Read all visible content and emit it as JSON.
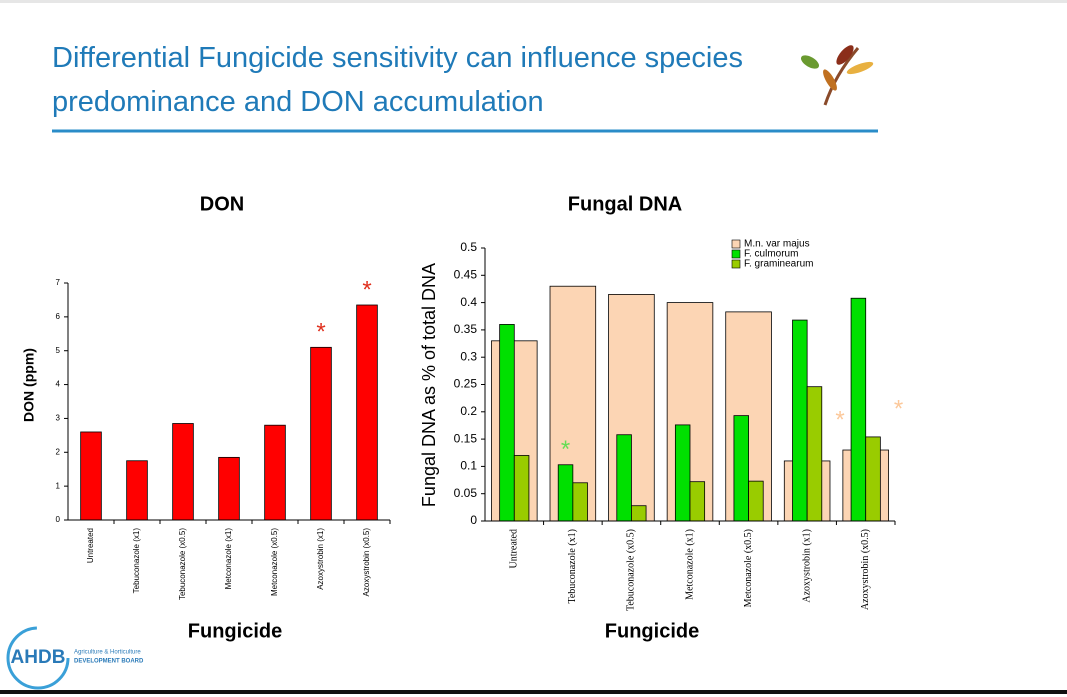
{
  "header": {
    "title": "Differential Fungicide sensitivity can influence species predominance and DON accumulation"
  },
  "logo": {
    "name": "AHDB",
    "line1": "Agriculture & Horticulture",
    "line2": "DEVELOPMENT BOARD"
  },
  "chart_data": [
    {
      "type": "bar",
      "title": "DON",
      "x_label": "Fungicide",
      "y_label": "DON (ppm)",
      "categories": [
        "Untreated",
        "Tebuconazole (x1)",
        "Tebuconazole (x0.5)",
        "Metconazole (x1)",
        "Metconazole (x0.5)",
        "Azoxystrobin (x1)",
        "Azoxystrobin (x0.5)"
      ],
      "values": [
        2.6,
        1.75,
        2.85,
        1.85,
        2.8,
        5.1,
        6.35
      ],
      "color": "#ff0000",
      "ylim": [
        0,
        7
      ],
      "yticks": [
        0,
        1,
        2,
        3,
        4,
        5,
        6,
        7
      ],
      "grid": false,
      "annotations": [
        {
          "text": "*",
          "category": "Azoxystrobin (x1)",
          "color": "#e0301e"
        },
        {
          "text": "*",
          "category": "Azoxystrobin (x0.5)",
          "color": "#e0301e"
        }
      ]
    },
    {
      "type": "bar",
      "title": "Fungal DNA",
      "x_label": "Fungicide",
      "y_label": "Fungal DNA as % of total DNA",
      "categories": [
        "Untreated",
        "Tebuconazole (x1)",
        "Tebuconazole (x0.5)",
        "Metconazole (x1)",
        "Metconazole (x0.5)",
        "Azoxystrobin (x1)",
        "Azoxystrobin (x0.5)"
      ],
      "series": [
        {
          "name": "M.n. var majus",
          "color": "#fcd5b4",
          "values": [
            0.33,
            0.43,
            0.415,
            0.4,
            0.383,
            0.11,
            0.13
          ]
        },
        {
          "name": "F. culmorum",
          "color": "#00e000",
          "values": [
            0.36,
            0.103,
            0.158,
            0.176,
            0.193,
            0.368,
            0.408
          ]
        },
        {
          "name": "F. graminearum",
          "color": "#99cc00",
          "values": [
            0.12,
            0.07,
            0.028,
            0.072,
            0.073,
            0.246,
            0.154
          ]
        }
      ],
      "ylim": [
        0,
        0.5
      ],
      "yticks": [
        0,
        0.05,
        0.1,
        0.15,
        0.2,
        0.25,
        0.3,
        0.35,
        0.4,
        0.45,
        0.5
      ],
      "grid": false,
      "legend": "top-right",
      "annotations": [
        {
          "text": "*",
          "category": "Tebuconazole (x1)",
          "series": "F. culmorum",
          "color": "#66dd55"
        },
        {
          "text": "*",
          "category": "Azoxystrobin (x1)",
          "series": "M.n. var majus",
          "color": "#fcc89a"
        },
        {
          "text": "*",
          "category": "Azoxystrobin (x0.5)",
          "series": "M.n. var majus",
          "color": "#fcc89a"
        }
      ]
    }
  ]
}
